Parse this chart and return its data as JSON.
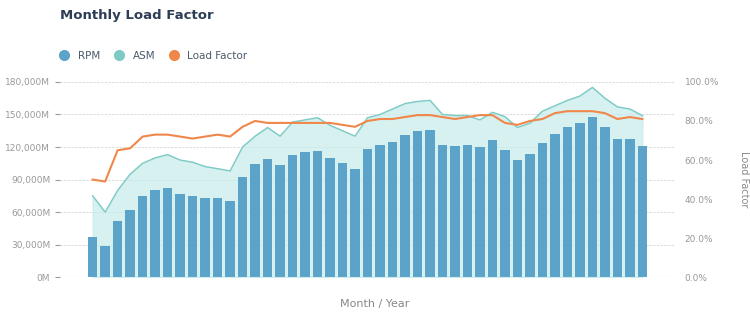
{
  "title": "Monthly Load Factor",
  "xlabel": "Month / Year",
  "ylabel_right": "Load Factor",
  "ytick_labels_left": [
    "0M",
    "30,000M",
    "60,000M",
    "90,000M",
    "120,000M",
    "150,000M",
    "180,000M"
  ],
  "ytick_vals_left": [
    0,
    30000,
    60000,
    90000,
    120000,
    150000,
    180000
  ],
  "ytick_vals_right": [
    0.0,
    0.2,
    0.4,
    0.6,
    0.8,
    1.0
  ],
  "ytick_labels_right": [
    "0.0%",
    "20.0%",
    "40.0%",
    "60.0%",
    "80.0%",
    "100.0%"
  ],
  "rpm": [
    37000,
    29000,
    52000,
    62000,
    75000,
    80000,
    82000,
    77000,
    75000,
    73000,
    73000,
    70000,
    92000,
    104000,
    109000,
    103000,
    113000,
    115000,
    116000,
    110000,
    105000,
    100000,
    118000,
    122000,
    125000,
    131000,
    135000,
    136000,
    122000,
    121000,
    122000,
    120000,
    126000,
    117000,
    108000,
    114000,
    124000,
    132000,
    138000,
    142000,
    148000,
    138000,
    127000,
    127000,
    121000
  ],
  "asm": [
    75000,
    60000,
    80000,
    95000,
    105000,
    110000,
    113000,
    108000,
    106000,
    102000,
    100000,
    98000,
    120000,
    130000,
    138000,
    130000,
    143000,
    145000,
    147000,
    140000,
    135000,
    130000,
    147000,
    150000,
    155000,
    160000,
    162000,
    163000,
    150000,
    149000,
    149000,
    145000,
    152000,
    148000,
    138000,
    142000,
    153000,
    158000,
    163000,
    167000,
    175000,
    165000,
    157000,
    155000,
    149000
  ],
  "load_factor": [
    0.5,
    0.49,
    0.65,
    0.66,
    0.72,
    0.73,
    0.73,
    0.72,
    0.71,
    0.72,
    0.73,
    0.72,
    0.77,
    0.8,
    0.79,
    0.79,
    0.79,
    0.79,
    0.79,
    0.79,
    0.78,
    0.77,
    0.8,
    0.81,
    0.81,
    0.82,
    0.83,
    0.83,
    0.82,
    0.81,
    0.82,
    0.83,
    0.83,
    0.79,
    0.78,
    0.8,
    0.81,
    0.84,
    0.85,
    0.85,
    0.85,
    0.84,
    0.81,
    0.82,
    0.81
  ],
  "bar_color": "#5ba3c9",
  "asm_fill_color": "#c5ecea",
  "asm_line_color": "#7ecac4",
  "load_factor_color": "#f0874a",
  "background_color": "#ffffff",
  "grid_color": "#d0d0d0",
  "title_color": "#2d3d56",
  "legend_text_color": "#4a5a6a",
  "axis_label_color": "#888888",
  "tick_label_color": "#999999"
}
